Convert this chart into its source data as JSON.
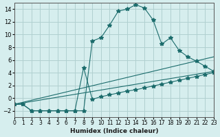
{
  "xlabel": "Humidex (Indice chaleur)",
  "ylabel": "",
  "background_color": "#d6eeee",
  "grid_color": "#b0d0d0",
  "line_color": "#1a6b6b",
  "xlim": [
    0,
    23
  ],
  "ylim": [
    -3,
    15
  ],
  "xticks": [
    0,
    1,
    2,
    3,
    4,
    5,
    6,
    7,
    8,
    9,
    10,
    11,
    12,
    13,
    14,
    15,
    16,
    17,
    18,
    19,
    20,
    21,
    22,
    23
  ],
  "yticks": [
    -2,
    0,
    2,
    4,
    6,
    8,
    10,
    12,
    14
  ],
  "line1_x": [
    0,
    1,
    2,
    3,
    4,
    5,
    6,
    7,
    8,
    9,
    10,
    11,
    12,
    13,
    14,
    15,
    16,
    17,
    18,
    19,
    20,
    21,
    22,
    23
  ],
  "line1_y": [
    -1,
    -1,
    -2,
    -2,
    -2,
    -2,
    -2,
    -2,
    -2,
    9.0,
    9.5,
    11.5,
    13.7,
    14.0,
    14.7,
    14.2,
    12.3,
    8.5,
    9.5,
    7.5,
    6.5,
    5.8,
    5.0,
    4.2
  ],
  "line2_x": [
    0,
    1,
    2,
    3,
    4,
    5,
    6,
    7,
    8,
    9,
    10,
    11,
    12,
    13,
    14,
    15,
    16,
    17,
    18,
    19,
    20,
    21,
    22,
    23
  ],
  "line2_y": [
    -1,
    -1,
    -2,
    -2,
    -2,
    -2,
    -2,
    -2,
    4.8,
    -0.2,
    0.2,
    0.5,
    0.8,
    1.1,
    1.3,
    1.6,
    1.9,
    2.2,
    2.5,
    2.8,
    3.1,
    3.4,
    3.7,
    4.0
  ],
  "line3_x": [
    0,
    23
  ],
  "line3_y": [
    -1,
    4.2
  ],
  "line4_x": [
    0,
    23
  ],
  "line4_y": [
    -1,
    6.5
  ]
}
